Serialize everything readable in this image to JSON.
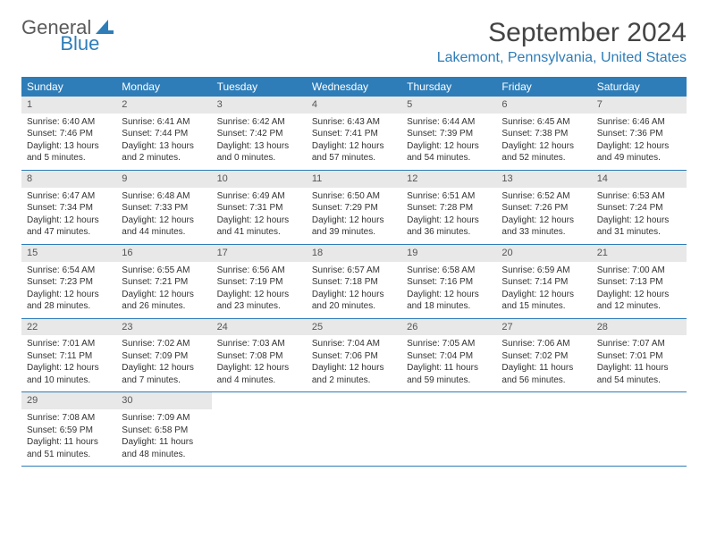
{
  "brand": {
    "name1": "General",
    "name2": "Blue"
  },
  "title": "September 2024",
  "location": "Lakemont, Pennsylvania, United States",
  "colors": {
    "accent": "#2e7db8",
    "header_bg": "#2e7db8",
    "daynum_bg": "#e8e8e8",
    "text": "#333333",
    "title_text": "#444444"
  },
  "day_names": [
    "Sunday",
    "Monday",
    "Tuesday",
    "Wednesday",
    "Thursday",
    "Friday",
    "Saturday"
  ],
  "weeks": [
    [
      {
        "n": "1",
        "sr": "Sunrise: 6:40 AM",
        "ss": "Sunset: 7:46 PM",
        "dl": "Daylight: 13 hours and 5 minutes."
      },
      {
        "n": "2",
        "sr": "Sunrise: 6:41 AM",
        "ss": "Sunset: 7:44 PM",
        "dl": "Daylight: 13 hours and 2 minutes."
      },
      {
        "n": "3",
        "sr": "Sunrise: 6:42 AM",
        "ss": "Sunset: 7:42 PM",
        "dl": "Daylight: 13 hours and 0 minutes."
      },
      {
        "n": "4",
        "sr": "Sunrise: 6:43 AM",
        "ss": "Sunset: 7:41 PM",
        "dl": "Daylight: 12 hours and 57 minutes."
      },
      {
        "n": "5",
        "sr": "Sunrise: 6:44 AM",
        "ss": "Sunset: 7:39 PM",
        "dl": "Daylight: 12 hours and 54 minutes."
      },
      {
        "n": "6",
        "sr": "Sunrise: 6:45 AM",
        "ss": "Sunset: 7:38 PM",
        "dl": "Daylight: 12 hours and 52 minutes."
      },
      {
        "n": "7",
        "sr": "Sunrise: 6:46 AM",
        "ss": "Sunset: 7:36 PM",
        "dl": "Daylight: 12 hours and 49 minutes."
      }
    ],
    [
      {
        "n": "8",
        "sr": "Sunrise: 6:47 AM",
        "ss": "Sunset: 7:34 PM",
        "dl": "Daylight: 12 hours and 47 minutes."
      },
      {
        "n": "9",
        "sr": "Sunrise: 6:48 AM",
        "ss": "Sunset: 7:33 PM",
        "dl": "Daylight: 12 hours and 44 minutes."
      },
      {
        "n": "10",
        "sr": "Sunrise: 6:49 AM",
        "ss": "Sunset: 7:31 PM",
        "dl": "Daylight: 12 hours and 41 minutes."
      },
      {
        "n": "11",
        "sr": "Sunrise: 6:50 AM",
        "ss": "Sunset: 7:29 PM",
        "dl": "Daylight: 12 hours and 39 minutes."
      },
      {
        "n": "12",
        "sr": "Sunrise: 6:51 AM",
        "ss": "Sunset: 7:28 PM",
        "dl": "Daylight: 12 hours and 36 minutes."
      },
      {
        "n": "13",
        "sr": "Sunrise: 6:52 AM",
        "ss": "Sunset: 7:26 PM",
        "dl": "Daylight: 12 hours and 33 minutes."
      },
      {
        "n": "14",
        "sr": "Sunrise: 6:53 AM",
        "ss": "Sunset: 7:24 PM",
        "dl": "Daylight: 12 hours and 31 minutes."
      }
    ],
    [
      {
        "n": "15",
        "sr": "Sunrise: 6:54 AM",
        "ss": "Sunset: 7:23 PM",
        "dl": "Daylight: 12 hours and 28 minutes."
      },
      {
        "n": "16",
        "sr": "Sunrise: 6:55 AM",
        "ss": "Sunset: 7:21 PM",
        "dl": "Daylight: 12 hours and 26 minutes."
      },
      {
        "n": "17",
        "sr": "Sunrise: 6:56 AM",
        "ss": "Sunset: 7:19 PM",
        "dl": "Daylight: 12 hours and 23 minutes."
      },
      {
        "n": "18",
        "sr": "Sunrise: 6:57 AM",
        "ss": "Sunset: 7:18 PM",
        "dl": "Daylight: 12 hours and 20 minutes."
      },
      {
        "n": "19",
        "sr": "Sunrise: 6:58 AM",
        "ss": "Sunset: 7:16 PM",
        "dl": "Daylight: 12 hours and 18 minutes."
      },
      {
        "n": "20",
        "sr": "Sunrise: 6:59 AM",
        "ss": "Sunset: 7:14 PM",
        "dl": "Daylight: 12 hours and 15 minutes."
      },
      {
        "n": "21",
        "sr": "Sunrise: 7:00 AM",
        "ss": "Sunset: 7:13 PM",
        "dl": "Daylight: 12 hours and 12 minutes."
      }
    ],
    [
      {
        "n": "22",
        "sr": "Sunrise: 7:01 AM",
        "ss": "Sunset: 7:11 PM",
        "dl": "Daylight: 12 hours and 10 minutes."
      },
      {
        "n": "23",
        "sr": "Sunrise: 7:02 AM",
        "ss": "Sunset: 7:09 PM",
        "dl": "Daylight: 12 hours and 7 minutes."
      },
      {
        "n": "24",
        "sr": "Sunrise: 7:03 AM",
        "ss": "Sunset: 7:08 PM",
        "dl": "Daylight: 12 hours and 4 minutes."
      },
      {
        "n": "25",
        "sr": "Sunrise: 7:04 AM",
        "ss": "Sunset: 7:06 PM",
        "dl": "Daylight: 12 hours and 2 minutes."
      },
      {
        "n": "26",
        "sr": "Sunrise: 7:05 AM",
        "ss": "Sunset: 7:04 PM",
        "dl": "Daylight: 11 hours and 59 minutes."
      },
      {
        "n": "27",
        "sr": "Sunrise: 7:06 AM",
        "ss": "Sunset: 7:02 PM",
        "dl": "Daylight: 11 hours and 56 minutes."
      },
      {
        "n": "28",
        "sr": "Sunrise: 7:07 AM",
        "ss": "Sunset: 7:01 PM",
        "dl": "Daylight: 11 hours and 54 minutes."
      }
    ],
    [
      {
        "n": "29",
        "sr": "Sunrise: 7:08 AM",
        "ss": "Sunset: 6:59 PM",
        "dl": "Daylight: 11 hours and 51 minutes."
      },
      {
        "n": "30",
        "sr": "Sunrise: 7:09 AM",
        "ss": "Sunset: 6:58 PM",
        "dl": "Daylight: 11 hours and 48 minutes."
      },
      null,
      null,
      null,
      null,
      null
    ]
  ]
}
